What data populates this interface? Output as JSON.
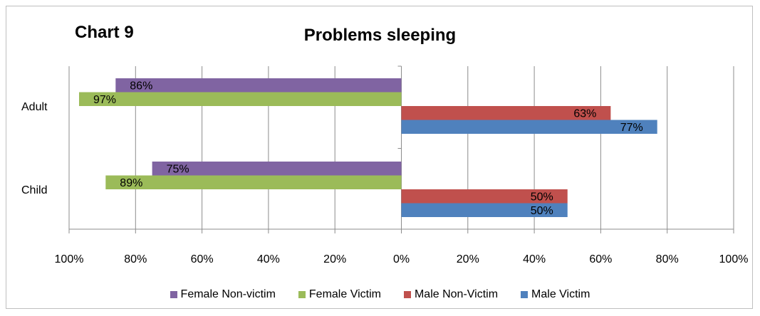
{
  "chart_label": "Chart 9",
  "chart_data": {
    "type": "bar",
    "orientation": "horizontal",
    "title": "Problems sleeping",
    "categories": [
      "Adult",
      "Child"
    ],
    "series": [
      {
        "name": "Female Non-victim",
        "side": "left",
        "color": "#8064a2",
        "values": [
          86,
          75
        ],
        "labels": [
          "86%",
          "75%"
        ]
      },
      {
        "name": "Female Victim",
        "side": "left",
        "color": "#9bbb59",
        "values": [
          97,
          89
        ],
        "labels": [
          "97%",
          "89%"
        ]
      },
      {
        "name": "Male Non-Victim",
        "side": "right",
        "color": "#c0504d",
        "values": [
          63,
          50
        ],
        "labels": [
          "63%",
          "50%"
        ]
      },
      {
        "name": "Male Victim",
        "side": "right",
        "color": "#4f81bd",
        "values": [
          77,
          50
        ],
        "labels": [
          "77%",
          "50%"
        ]
      }
    ],
    "xlim": [
      -100,
      100
    ],
    "x_ticks": [
      "100%",
      "80%",
      "60%",
      "40%",
      "20%",
      "0%",
      "20%",
      "40%",
      "60%",
      "80%",
      "100%"
    ],
    "grid": true,
    "legend_position": "bottom"
  }
}
